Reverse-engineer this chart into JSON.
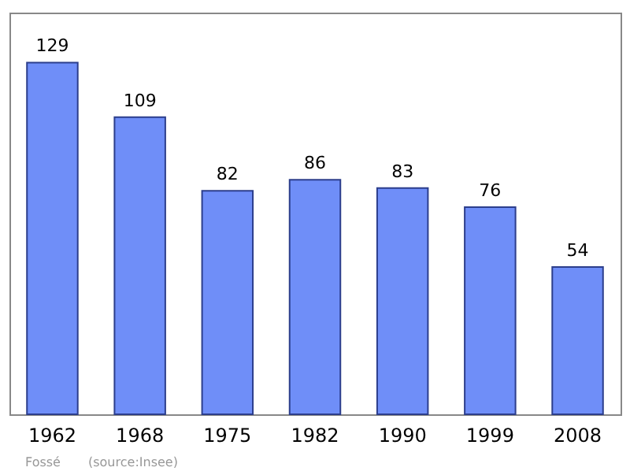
{
  "chart_data": {
    "type": "bar",
    "categories": [
      "1962",
      "1968",
      "1975",
      "1982",
      "1990",
      "1999",
      "2008"
    ],
    "values": [
      129,
      109,
      82,
      86,
      83,
      76,
      54
    ],
    "color": "#6f8ef8",
    "data_labels": true,
    "annotations": [
      "Fossé",
      "(source:Insee)"
    ]
  }
}
